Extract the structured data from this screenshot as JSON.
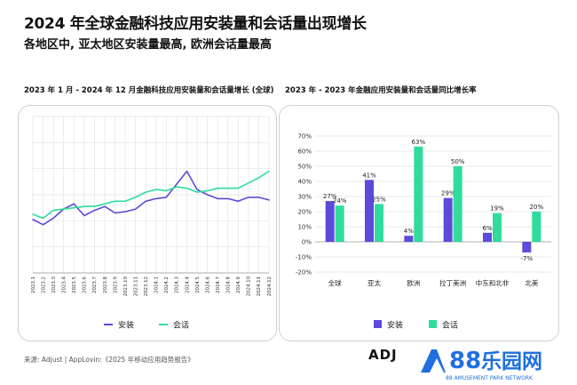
{
  "header": {
    "title": "2024 年全球金融科技应用安装量和会话量出现增长",
    "subtitle": "各地区中, 亚太地区安装量最高, 欧洲会话量最高"
  },
  "footer": {
    "source": "来源: Adjust | AppLovin:《2025 年移动应用趋势报告》",
    "adj_logo": "ADJ",
    "brand_number": "88",
    "brand_name": "乐园网",
    "brand_tagline": "88 AMUSEMENT PARK NETWORK"
  },
  "colors": {
    "installs": "#5b4bd8",
    "sessions": "#2fdc9c",
    "grid": "#e3e3e3",
    "axis": "#999999"
  },
  "chart_data": [
    {
      "type": "line",
      "title": "2023 年 1 月 - 2024 年 12 月金融科技应用安装量和会话量增长 (全球)",
      "x": [
        "2023.1",
        "2023.2",
        "2023.3",
        "2023.4",
        "2023.5",
        "2023.6",
        "2023.7",
        "2023.8",
        "2023.9",
        "2023.10",
        "2023.11",
        "2023.12",
        "2024.1",
        "2024.2",
        "2024.3",
        "2024.4",
        "2024.5",
        "2024.6",
        "2024.7",
        "2024.8",
        "2024.9",
        "2024.10",
        "2024.11",
        "2024.12"
      ],
      "series": [
        {
          "name": "安装",
          "values": [
            41,
            37,
            42,
            49,
            53,
            44,
            48,
            51,
            46,
            47,
            49,
            55,
            57,
            58,
            68,
            78,
            64,
            60,
            57,
            57,
            55,
            58,
            58,
            56
          ]
        },
        {
          "name": "会话",
          "values": [
            45,
            42,
            48,
            49,
            50,
            51,
            51,
            53,
            55,
            55,
            58,
            62,
            64,
            63,
            66,
            65,
            62,
            63,
            65,
            65,
            65,
            69,
            73,
            78
          ]
        }
      ],
      "ylim": [
        0,
        120
      ],
      "grid": true,
      "legend": "bottom"
    },
    {
      "type": "bar",
      "title": "2023 年 - 2023 年金融应用安装量和会话量同比增长率",
      "categories": [
        "全球",
        "亚太",
        "欧洲",
        "拉丁美洲",
        "中东和北非",
        "北美"
      ],
      "series": [
        {
          "name": "安装",
          "values": [
            27,
            41,
            4,
            29,
            6,
            -7
          ]
        },
        {
          "name": "会话",
          "values": [
            24,
            25,
            63,
            50,
            19,
            20
          ]
        }
      ],
      "yticks": [
        "70%",
        "60%",
        "50%",
        "40%",
        "30%",
        "20%",
        "10%",
        "0%",
        "-10%",
        "-20%"
      ],
      "ylim": [
        -20,
        70
      ],
      "grid": true,
      "legend": "bottom"
    }
  ]
}
